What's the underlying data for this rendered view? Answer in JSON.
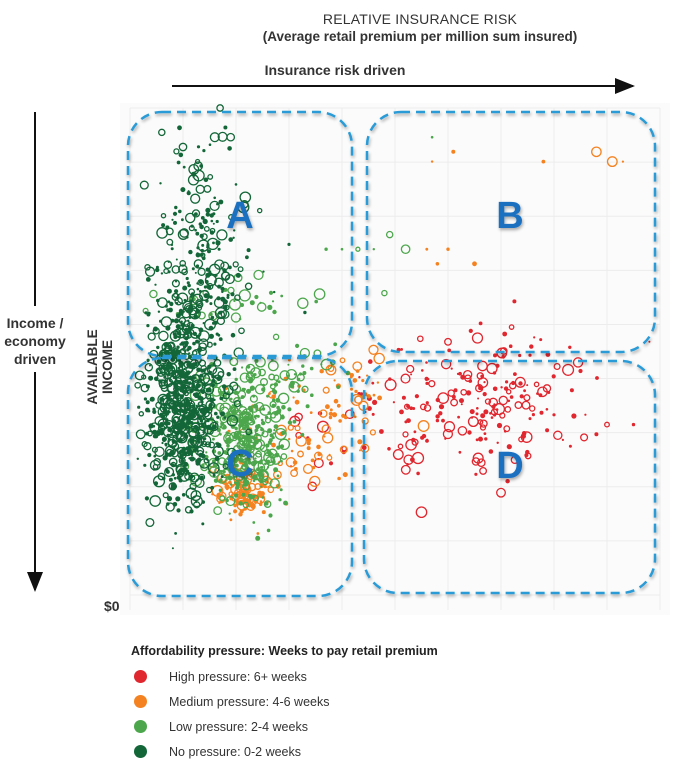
{
  "chart_data": {
    "type": "scatter",
    "title": "RELATIVE INSURANCE RISK",
    "subtitle": "(Average retail premium per million sum insured)",
    "xlabel": "Insurance risk driven",
    "ylabel": "AVAILABLE INCOME",
    "y_direction_label": "Income / economy driven",
    "y_origin_label": "$0",
    "x_range": [
      0,
      100
    ],
    "y_range": [
      0,
      100
    ],
    "grid": true,
    "legend_position": "bottom-left",
    "legend_title": "Affordability pressure: Weeks to pay retail premium",
    "regions": [
      {
        "label": "A",
        "x": [
          0,
          45
        ],
        "y": [
          52,
          100
        ]
      },
      {
        "label": "B",
        "x": [
          45,
          100
        ],
        "y": [
          52,
          100
        ]
      },
      {
        "label": "C",
        "x": [
          0,
          45
        ],
        "y": [
          0,
          52
        ]
      },
      {
        "label": "D",
        "x": [
          45,
          100
        ],
        "y": [
          0,
          52
        ]
      }
    ],
    "series": [
      {
        "name": "High pressure: 6+ weeks",
        "color": "#e0262e",
        "clusters": [
          {
            "cx": 68,
            "cy": 41,
            "sx": 8,
            "sy": 7,
            "n": 170
          },
          {
            "cx": 50,
            "cy": 35,
            "sx": 4,
            "sy": 6,
            "n": 40
          },
          {
            "cx": 38,
            "cy": 30,
            "sx": 5,
            "sy": 4,
            "n": 12
          }
        ],
        "points": [
          [
            85,
            46
          ],
          [
            90,
            35
          ],
          [
            95,
            35
          ],
          [
            88,
            33
          ],
          [
            60,
            52
          ],
          [
            72,
            55
          ],
          [
            98,
            52
          ],
          [
            55,
            17
          ],
          [
            70,
            21
          ],
          [
            80,
            37
          ]
        ]
      },
      {
        "name": "Medium pressure: 4-6 weeks",
        "color": "#f58220",
        "clusters": [
          {
            "cx": 22,
            "cy": 21,
            "sx": 3,
            "sy": 2.5,
            "n": 110
          },
          {
            "cx": 33,
            "cy": 35,
            "sx": 7,
            "sy": 6,
            "n": 80
          },
          {
            "cx": 43,
            "cy": 43,
            "sx": 3,
            "sy": 3,
            "n": 25
          }
        ],
        "points": [
          [
            57,
            89
          ],
          [
            61,
            91
          ],
          [
            78,
            89
          ],
          [
            88,
            91
          ],
          [
            91,
            89
          ],
          [
            93,
            89
          ],
          [
            60,
            71
          ],
          [
            56,
            71
          ],
          [
            58,
            68
          ],
          [
            65,
            68
          ]
        ]
      },
      {
        "name": "Low pressure: 2-4 weeks",
        "color": "#4ca64c",
        "clusters": [
          {
            "cx": 21,
            "cy": 32,
            "sx": 4,
            "sy": 7,
            "n": 380
          },
          {
            "cx": 28,
            "cy": 45,
            "sx": 6,
            "sy": 3,
            "n": 60
          },
          {
            "cx": 22,
            "cy": 60,
            "sx": 10,
            "sy": 2,
            "n": 35
          }
        ],
        "points": [
          [
            37,
            71
          ],
          [
            40,
            71
          ],
          [
            43,
            71
          ],
          [
            46,
            71
          ],
          [
            49,
            74
          ],
          [
            52,
            71
          ],
          [
            48,
            62
          ],
          [
            57,
            94
          ]
        ]
      },
      {
        "name": "No pressure: 0-2 weeks",
        "color": "#136638",
        "clusters": [
          {
            "cx": 10,
            "cy": 40,
            "sx": 3.5,
            "sy": 11,
            "n": 700
          },
          {
            "cx": 14,
            "cy": 68,
            "sx": 5,
            "sy": 9,
            "n": 180
          },
          {
            "cx": 13,
            "cy": 88,
            "sx": 3,
            "sy": 6,
            "n": 30
          }
        ],
        "points": [
          [
            17,
            100
          ],
          [
            18,
            96
          ],
          [
            16,
            94
          ],
          [
            19,
            94
          ],
          [
            6,
            95
          ],
          [
            10,
            92
          ],
          [
            30,
            72
          ],
          [
            33,
            58
          ]
        ]
      }
    ]
  }
}
